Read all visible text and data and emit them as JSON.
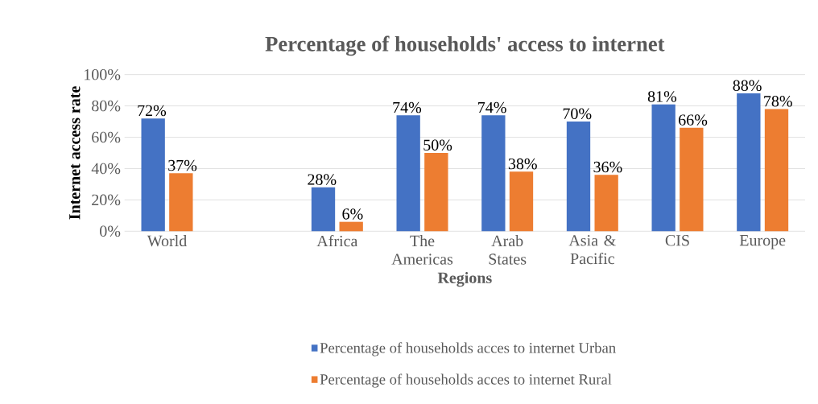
{
  "chart_data": {
    "type": "bar",
    "title": "Percentage of households' access to internet",
    "xlabel": "Regions",
    "ylabel": "Internet access rate",
    "categories": [
      "World",
      null,
      "Africa",
      "The Americas",
      "Arab States",
      "Asia & Pacific",
      "CIS",
      "Europe"
    ],
    "series": [
      {
        "name": "Percentage of households acces to internet Urban",
        "color": "#4472c4",
        "values": [
          72,
          null,
          28,
          74,
          74,
          70,
          81,
          88
        ],
        "value_labels": [
          "72%",
          null,
          "28%",
          "74%",
          "74%",
          "70%",
          "81%",
          "88%"
        ]
      },
      {
        "name": "Percentage of households acces to internet Rural",
        "color": "#ed7d31",
        "values": [
          37,
          null,
          6,
          50,
          38,
          36,
          66,
          78
        ],
        "value_labels": [
          "37%",
          null,
          "6%",
          "50%",
          "38%",
          "36%",
          "66%",
          "78%"
        ]
      }
    ],
    "ylim": [
      0,
      100
    ],
    "yticks": [
      {
        "value": 0,
        "label": "0%"
      },
      {
        "value": 20,
        "label": "20%"
      },
      {
        "value": 40,
        "label": "40%"
      },
      {
        "value": 60,
        "label": "60%"
      },
      {
        "value": 80,
        "label": "80%"
      },
      {
        "value": 100,
        "label": "100%"
      }
    ],
    "grid": "y",
    "legend": "bottom"
  }
}
